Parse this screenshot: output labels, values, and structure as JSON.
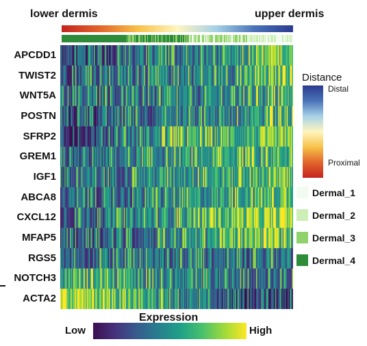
{
  "labels": {
    "left_end": "lower dermis",
    "right_end": "upper dermis"
  },
  "genes": [
    "APCDD1",
    "TWIST2",
    "WNT5A",
    "POSTN",
    "SFRP2",
    "GREM1",
    "IGF1",
    "ABCA8",
    "CXCL12",
    "MFAP5",
    "RGS5",
    "NOTCH3",
    "ACTA2"
  ],
  "distance_legend": {
    "title": "Distance",
    "top_label": "Distal",
    "bottom_label": "Proximal",
    "colors": [
      "#2b3b8f",
      "#4a73b8",
      "#a6d1e6",
      "#fff5c0",
      "#f7c24a",
      "#e2662c",
      "#c4231e"
    ]
  },
  "cluster_legend": [
    {
      "label": "Dermal_1",
      "color": "#f2fbef"
    },
    {
      "label": "Dermal_2",
      "color": "#cdeeb6"
    },
    {
      "label": "Dermal_3",
      "color": "#8fd16a"
    },
    {
      "label": "Dermal_4",
      "color": "#2e8b3a"
    }
  ],
  "expression_legend": {
    "title": "Expression",
    "low": "Low",
    "high": "High",
    "colors": [
      "#3b0f4f",
      "#46327e",
      "#365c8d",
      "#277f8e",
      "#1fa187",
      "#4ac16d",
      "#a0da39",
      "#fde725"
    ]
  },
  "chart_data": {
    "type": "heatmap",
    "xlabel": "",
    "ylabel": "",
    "rows": [
      "APCDD1",
      "TWIST2",
      "WNT5A",
      "POSTN",
      "SFRP2",
      "GREM1",
      "IGF1",
      "ABCA8",
      "CXCL12",
      "MFAP5",
      "RGS5",
      "NOTCH3",
      "ACTA2"
    ],
    "x_order": "cells ordered from lower dermis to upper dermis",
    "value_scale": [
      "Low",
      "High"
    ],
    "mean_expression_profile_0_to_1": {
      "positions": [
        0.0,
        0.25,
        0.5,
        0.75,
        1.0
      ],
      "APCDD1": [
        0.2,
        0.28,
        0.38,
        0.45,
        0.8
      ],
      "TWIST2": [
        0.3,
        0.35,
        0.42,
        0.5,
        0.8
      ],
      "WNT5A": [
        0.3,
        0.35,
        0.38,
        0.45,
        0.6
      ],
      "POSTN": [
        0.2,
        0.3,
        0.4,
        0.5,
        0.6
      ],
      "SFRP2": [
        0.05,
        0.35,
        0.55,
        0.62,
        0.7
      ],
      "GREM1": [
        0.25,
        0.4,
        0.5,
        0.6,
        0.65
      ],
      "IGF1": [
        0.25,
        0.4,
        0.55,
        0.6,
        0.7
      ],
      "ABCA8": [
        0.3,
        0.35,
        0.45,
        0.6,
        0.7
      ],
      "CXCL12": [
        0.3,
        0.4,
        0.55,
        0.75,
        0.8
      ],
      "MFAP5": [
        0.3,
        0.3,
        0.45,
        0.65,
        0.7
      ],
      "RGS5": [
        0.35,
        0.35,
        0.35,
        0.35,
        0.4
      ],
      "NOTCH3": [
        0.65,
        0.55,
        0.4,
        0.38,
        0.4
      ],
      "ACTA2": [
        0.85,
        0.75,
        0.4,
        0.25,
        0.2
      ]
    }
  }
}
